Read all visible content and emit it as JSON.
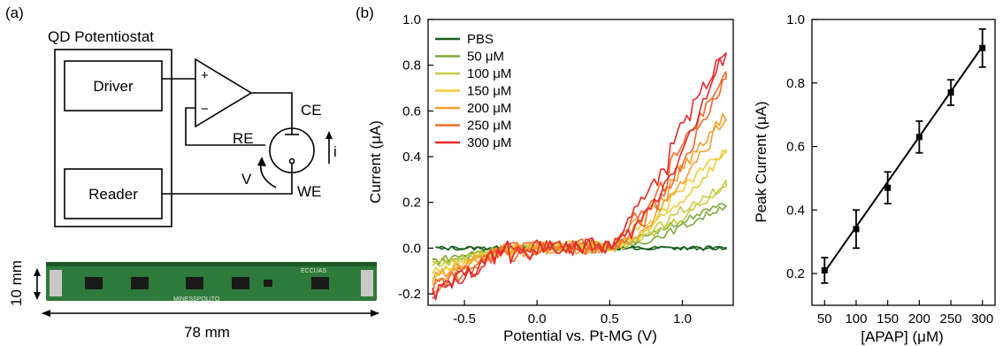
{
  "panel_a": {
    "label": "(a)",
    "title": "QD Potentiostat",
    "driver": "Driver",
    "reader": "Reader",
    "plus": "+",
    "minus": "−",
    "ce": "CE",
    "re": "RE",
    "we": "WE",
    "v": "V",
    "i": "i",
    "board_text": "MINESSPOLITO",
    "board_tag": "ECCUAS",
    "height_dim": "10 mm",
    "width_dim": "78 mm",
    "colors": {
      "board": "#2e7a3a",
      "board_dark": "#1d5a28",
      "pins": "#c8c8c8"
    }
  },
  "chart_data": [
    {
      "type": "line",
      "panel_label": "(b)",
      "xlabel": "Potential vs. Pt-MG (V)",
      "ylabel": "Current (μA)",
      "xlim": [
        -0.75,
        1.35
      ],
      "ylim": [
        -0.25,
        1.0
      ],
      "xticks": [
        -0.5,
        0.0,
        0.5,
        1.0
      ],
      "xtick_labels": [
        "-0.5",
        "0.0",
        "0.5",
        "1.0"
      ],
      "yticks": [
        -0.2,
        0.0,
        0.2,
        0.4,
        0.6,
        0.8,
        1.0
      ],
      "ytick_labels": [
        "-0.2",
        "0.0",
        "0.2",
        "0.4",
        "0.6",
        "0.8",
        "1.0"
      ],
      "legend_position": "top-left",
      "series": [
        {
          "name": "PBS",
          "color": "#1b5e20",
          "forward_peak": 0.0,
          "reverse_low": -0.03,
          "min": 0.0
        },
        {
          "name": "50 μM",
          "color": "#7ca83c",
          "forward_peak": 0.19,
          "reverse_low": 0.1,
          "min": -0.06
        },
        {
          "name": "100 μM",
          "color": "#c8cc44",
          "forward_peak": 0.28,
          "reverse_low": 0.13,
          "min": -0.08
        },
        {
          "name": "150 μM",
          "color": "#f0cc3a",
          "forward_peak": 0.43,
          "reverse_low": 0.2,
          "min": -0.11
        },
        {
          "name": "200 μM",
          "color": "#f4a030",
          "forward_peak": 0.58,
          "reverse_low": 0.27,
          "min": -0.14
        },
        {
          "name": "250 μM",
          "color": "#ee6a2c",
          "forward_peak": 0.76,
          "reverse_low": 0.35,
          "min": -0.18
        },
        {
          "name": "300 μM",
          "color": "#e62a2a",
          "forward_peak": 0.87,
          "reverse_low": 0.42,
          "min": -0.21
        }
      ]
    },
    {
      "type": "line",
      "xlabel": "[APAP] (μM)",
      "ylabel": "Peak Current (μA)",
      "xlim": [
        30,
        320
      ],
      "ylim": [
        0.1,
        1.0
      ],
      "xticks": [
        50,
        100,
        150,
        200,
        250,
        300
      ],
      "xtick_labels": [
        "50",
        "100",
        "150",
        "200",
        "250",
        "300"
      ],
      "yticks": [
        0.2,
        0.4,
        0.6,
        0.8,
        1.0
      ],
      "ytick_labels": [
        "0.2",
        "0.4",
        "0.6",
        "0.8",
        "1.0"
      ],
      "x": [
        50,
        100,
        150,
        200,
        250,
        300
      ],
      "y": [
        0.21,
        0.34,
        0.47,
        0.63,
        0.77,
        0.91
      ],
      "error": [
        0.04,
        0.06,
        0.05,
        0.05,
        0.04,
        0.06
      ],
      "fit": {
        "x": [
          50,
          300
        ],
        "y": [
          0.205,
          0.915
        ]
      }
    }
  ]
}
